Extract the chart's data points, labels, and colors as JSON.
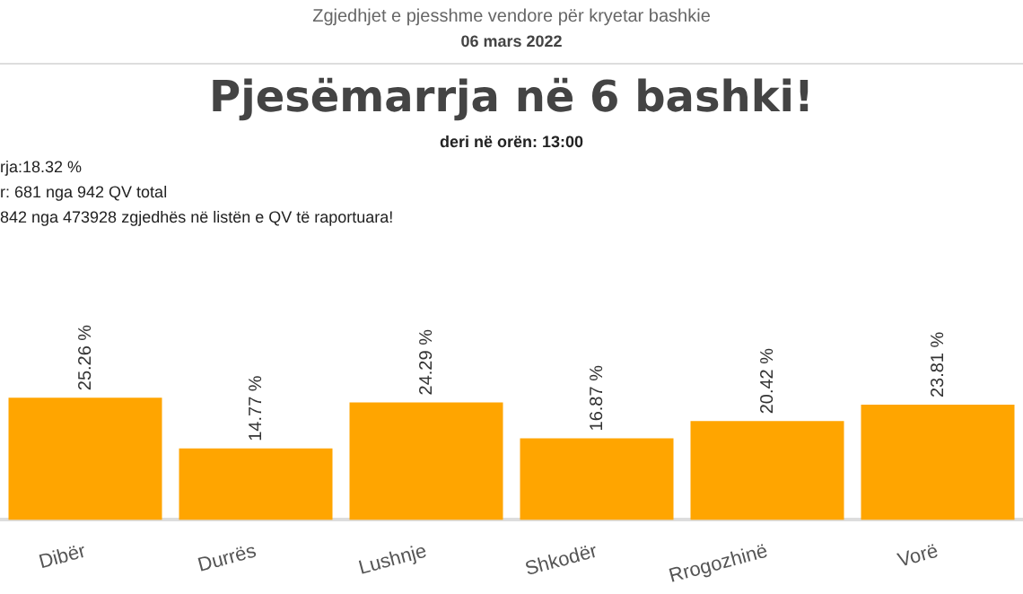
{
  "chart_data": {
    "type": "bar",
    "title": "Pjesëmarrja në 6 bashki!",
    "subtitle": "deri në orën: 13:00",
    "annotations": [
      "Zgjedhjet e pjesshme vendore për kryetar bashkie",
      "06 mars 2022",
      "rja:18.32 %",
      "r: 681 nga 942 QV total",
      "842 nga 473928 zgjedhës në listën e QV të raportuara!"
    ],
    "categories": [
      "Dibër",
      "Durrës",
      "Lushnje",
      "Shkodër",
      "Rrogozhinë",
      "Vorë"
    ],
    "values": [
      25.26,
      14.77,
      24.29,
      16.87,
      20.42,
      23.81
    ],
    "value_labels": [
      "25.26 %",
      "14.77 %",
      "24.29 %",
      "16.87 %",
      "20.42 %",
      "23.81 %"
    ],
    "color": "#ffa500",
    "grid": false,
    "legend": false
  }
}
